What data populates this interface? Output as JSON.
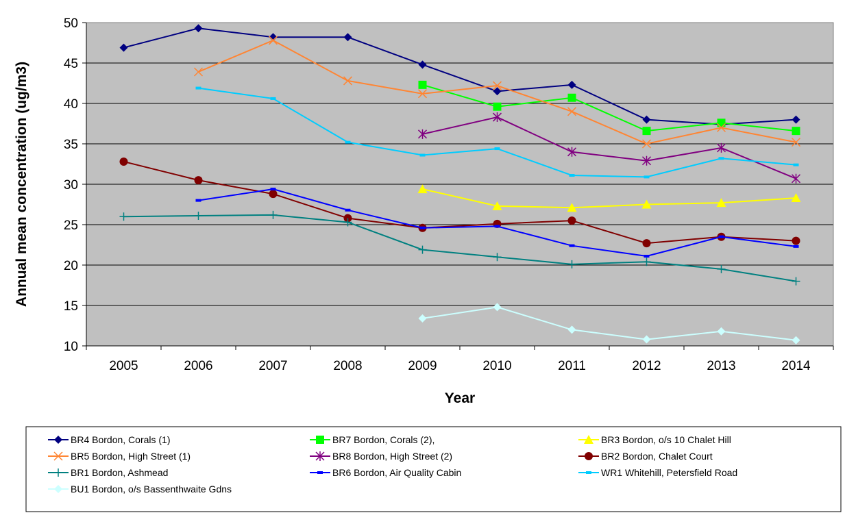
{
  "chart_data": {
    "type": "line",
    "title": "",
    "xlabel": "Year",
    "ylabel": "Annual mean concentration (ug/m3)",
    "ylim": [
      10,
      50
    ],
    "yticks": [
      10,
      15,
      20,
      25,
      30,
      35,
      40,
      45,
      50
    ],
    "x": [
      2005,
      2006,
      2007,
      2008,
      2009,
      2010,
      2011,
      2012,
      2013,
      2014
    ],
    "grid": "horizontal",
    "legend_position": "bottom",
    "series": [
      {
        "name": "BR4 Bordon, Corals (1)",
        "color": "#000080",
        "marker": "diamond",
        "values": [
          46.9,
          49.3,
          48.2,
          48.2,
          44.8,
          41.5,
          42.3,
          38.0,
          37.4,
          38.0
        ]
      },
      {
        "name": "BR7 Bordon, Corals (2),",
        "color": "#00ff00",
        "marker": "square",
        "values": [
          null,
          null,
          null,
          null,
          42.3,
          39.6,
          40.7,
          36.6,
          37.6,
          36.6
        ]
      },
      {
        "name": "BR3 Bordon, o/s 10 Chalet Hill",
        "color": "#ffff00",
        "marker": "triangle",
        "values": [
          null,
          null,
          null,
          null,
          29.4,
          27.3,
          27.1,
          27.5,
          27.7,
          28.3
        ]
      },
      {
        "name": "BR5 Bordon, High Street (1)",
        "color": "#ff8533",
        "marker": "x",
        "values": [
          null,
          43.9,
          47.8,
          42.8,
          41.2,
          42.2,
          39.0,
          35.0,
          37.0,
          35.2
        ]
      },
      {
        "name": "BR8 Bordon, High Street (2)",
        "color": "#800080",
        "marker": "asterisk",
        "values": [
          null,
          null,
          null,
          null,
          36.2,
          38.3,
          34.0,
          32.9,
          34.5,
          30.7
        ]
      },
      {
        "name": "BR2 Bordon, Chalet Court",
        "color": "#800000",
        "marker": "circle",
        "values": [
          32.8,
          30.5,
          28.8,
          25.8,
          24.6,
          25.1,
          25.5,
          22.7,
          23.5,
          23.0
        ]
      },
      {
        "name": "BR1 Bordon, Ashmead",
        "color": "#008080",
        "marker": "plus",
        "values": [
          26.0,
          26.1,
          26.2,
          25.3,
          21.9,
          21.0,
          20.1,
          20.4,
          19.5,
          18.0
        ]
      },
      {
        "name": "BR6 Bordon, Air Quality Cabin",
        "color": "#0000ff",
        "marker": "dash",
        "values": [
          null,
          28.0,
          29.4,
          26.8,
          24.6,
          24.8,
          22.4,
          21.1,
          23.5,
          22.3
        ]
      },
      {
        "name": "WR1 Whitehill, Petersfield Road",
        "color": "#00ccff",
        "marker": "dash",
        "values": [
          null,
          41.9,
          40.6,
          35.2,
          33.6,
          34.4,
          31.1,
          30.9,
          33.2,
          32.4
        ]
      },
      {
        "name": "BU1 Bordon, o/s Bassenthwaite Gdns",
        "color": "#ccffff",
        "marker": "diamond",
        "values": [
          null,
          null,
          null,
          null,
          13.4,
          14.8,
          12.0,
          10.8,
          11.8,
          10.7
        ]
      }
    ]
  }
}
